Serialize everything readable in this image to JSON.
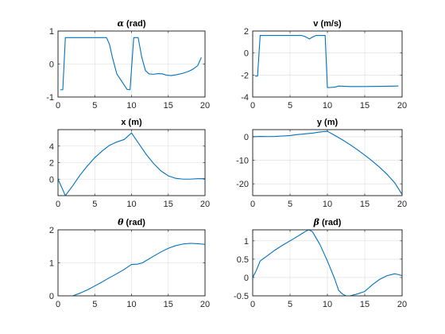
{
  "chart_data": [
    {
      "type": "line",
      "title_symbol": "α",
      "title": " (rad)",
      "xlim": [
        0,
        20
      ],
      "ylim": [
        -1,
        1
      ],
      "xticks": [
        0,
        5,
        10,
        15,
        20
      ],
      "yticks": [
        -1,
        0,
        1
      ],
      "grid": true,
      "series": [
        {
          "color": "#0072BD",
          "x": [
            0.3,
            0.65,
            1.0,
            6.6,
            7.0,
            7.4,
            8.0,
            9.4,
            9.8,
            10.3,
            10.9,
            11.4,
            11.9,
            12.4,
            13.0,
            13.6,
            14.2,
            14.8,
            15.4,
            16.2,
            17.0,
            17.8,
            18.4,
            19.0,
            19.5
          ],
          "y": [
            -0.78,
            -0.78,
            0.8,
            0.8,
            0.6,
            0.2,
            -0.3,
            -0.77,
            -0.78,
            0.8,
            0.8,
            0.2,
            -0.2,
            -0.3,
            -0.31,
            -0.29,
            -0.3,
            -0.34,
            -0.35,
            -0.32,
            -0.28,
            -0.22,
            -0.15,
            -0.05,
            0.2
          ]
        }
      ]
    },
    {
      "type": "line",
      "title_symbol": "",
      "title": "v (m/s)",
      "xlim": [
        0,
        20
      ],
      "ylim": [
        -4,
        2
      ],
      "xticks": [
        0,
        5,
        10,
        15,
        20
      ],
      "yticks": [
        -4,
        -2,
        0,
        2
      ],
      "grid": true,
      "series": [
        {
          "color": "#0072BD",
          "x": [
            0.3,
            0.65,
            1.0,
            6.5,
            7.0,
            7.6,
            8.0,
            8.5,
            9.7,
            10.0,
            11.0,
            11.5,
            13.0,
            15.0,
            17.0,
            19.5
          ],
          "y": [
            -2.1,
            -2.1,
            1.6,
            1.6,
            1.5,
            1.28,
            1.45,
            1.6,
            1.6,
            -3.15,
            -3.1,
            -3.0,
            -3.05,
            -3.05,
            -3.03,
            -3.0
          ]
        }
      ]
    },
    {
      "type": "line",
      "title_symbol": "",
      "title": "x (m)",
      "xlim": [
        0,
        20
      ],
      "ylim": [
        -2,
        6
      ],
      "xticks": [
        0,
        5,
        10,
        15,
        20
      ],
      "yticks": [
        0,
        2,
        4
      ],
      "grid": true,
      "series": [
        {
          "color": "#0072BD",
          "x": [
            0,
            0.5,
            1.0,
            2.0,
            3.0,
            4.0,
            5.0,
            6.0,
            7.0,
            8.0,
            9.0,
            9.5,
            10.0,
            11.0,
            12.0,
            13.0,
            14.0,
            15.0,
            16.0,
            17.0,
            18.0,
            19.0,
            20.0
          ],
          "y": [
            0,
            -1.0,
            -2.0,
            -0.8,
            0.5,
            1.6,
            2.6,
            3.4,
            4.1,
            4.5,
            4.8,
            5.2,
            5.6,
            4.3,
            3.0,
            1.9,
            1.0,
            0.4,
            0.1,
            0.0,
            0.0,
            0.05,
            0.05
          ]
        }
      ]
    },
    {
      "type": "line",
      "title_symbol": "",
      "title": "y (m)",
      "xlim": [
        0,
        20
      ],
      "ylim": [
        -25,
        3
      ],
      "xticks": [
        0,
        5,
        10,
        15,
        20
      ],
      "yticks": [
        -20,
        -10,
        0
      ],
      "grid": true,
      "series": [
        {
          "color": "#0072BD",
          "x": [
            0,
            1,
            2,
            3,
            4,
            5,
            6,
            7,
            8,
            9,
            10,
            11,
            12,
            13,
            14,
            15,
            16,
            17,
            18,
            19,
            20
          ],
          "y": [
            0,
            0.1,
            0.05,
            0.1,
            0.3,
            0.5,
            0.9,
            1.2,
            1.5,
            2.0,
            2.3,
            0.5,
            -1.3,
            -3.3,
            -5.5,
            -7.8,
            -10.3,
            -13.0,
            -16.0,
            -19.5,
            -24.5
          ]
        }
      ]
    },
    {
      "type": "line",
      "title_symbol": "θ",
      "title": " (rad)",
      "xlim": [
        0,
        20
      ],
      "ylim": [
        0,
        2
      ],
      "xticks": [
        0,
        5,
        10,
        15,
        20
      ],
      "yticks": [
        0,
        1,
        2
      ],
      "grid": true,
      "series": [
        {
          "color": "#0072BD",
          "x": [
            0,
            0.5,
            1.0,
            2.0,
            3.0,
            4.0,
            5.0,
            6.0,
            7.0,
            8.0,
            9.0,
            10.0,
            10.8,
            11.5,
            12.0,
            13.0,
            14.0,
            15.0,
            16.0,
            17.0,
            18.0,
            19.0,
            20.0
          ],
          "y": [
            0,
            -0.02,
            -0.05,
            0.0,
            0.08,
            0.18,
            0.3,
            0.42,
            0.55,
            0.67,
            0.8,
            0.95,
            0.96,
            1.0,
            1.07,
            1.2,
            1.33,
            1.44,
            1.52,
            1.57,
            1.59,
            1.58,
            1.56
          ]
        }
      ]
    },
    {
      "type": "line",
      "title_symbol": "β",
      "title": " (rad)",
      "xlim": [
        0,
        20
      ],
      "ylim": [
        -0.5,
        1.3
      ],
      "xticks": [
        0,
        5,
        10,
        15,
        20
      ],
      "yticks": [
        -0.5,
        0,
        0.5,
        1
      ],
      "grid": true,
      "series": [
        {
          "color": "#0072BD",
          "x": [
            0,
            0.5,
            1.0,
            2.0,
            3.0,
            4.0,
            5.0,
            6.0,
            7.0,
            7.5,
            8.0,
            9.0,
            10.0,
            11.0,
            11.5,
            12.0,
            12.5,
            13.0,
            14.0,
            15.0,
            16.0,
            17.0,
            18.0,
            19.0,
            19.5,
            20.0
          ],
          "y": [
            0.0,
            0.2,
            0.45,
            0.6,
            0.75,
            0.88,
            1.0,
            1.12,
            1.25,
            1.3,
            1.25,
            0.9,
            0.45,
            -0.05,
            -0.35,
            -0.45,
            -0.5,
            -0.5,
            -0.45,
            -0.38,
            -0.2,
            -0.05,
            0.05,
            0.1,
            0.08,
            0.05
          ]
        }
      ]
    }
  ]
}
